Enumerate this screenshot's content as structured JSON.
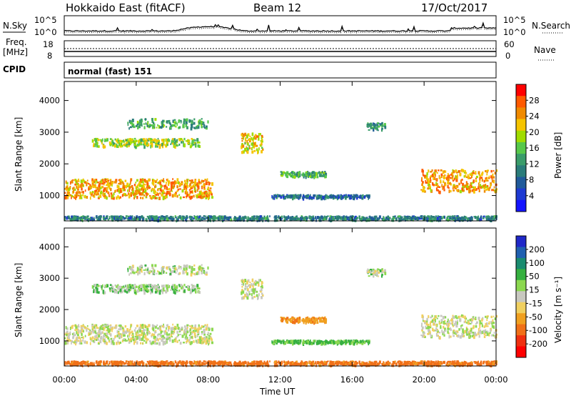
{
  "header": {
    "station": "Hokkaido East (fitACF)",
    "beam": "Beam 12",
    "date": "17/Oct/2017"
  },
  "noise_panel": {
    "left_label": "N.Sky",
    "right_label": "N.Search",
    "left_ticks": [
      "10^5",
      "10^0"
    ],
    "right_ticks": [
      "10^5",
      "10^0"
    ]
  },
  "freq_panel": {
    "left_label_1": "Freq.",
    "left_label_2": "[MHz]",
    "right_label": "Nave",
    "left_ticks": [
      "18",
      "8"
    ],
    "right_ticks": [
      "60",
      "0"
    ]
  },
  "cpid_panel": {
    "label": "CPID",
    "mode_text": "normal (fast) 151"
  },
  "power_panel": {
    "ylabel": "Slant Range [km]",
    "cbar_label": "Power [dB]",
    "cbar_ticks": [
      "28",
      "24",
      "20",
      "16",
      "12",
      "8",
      "4"
    ],
    "cbar_colors": [
      "#ff0000",
      "#ff5a00",
      "#f08a00",
      "#f5c400",
      "#a0dc00",
      "#57c84a",
      "#3a9c6a",
      "#2a7c7a",
      "#205a9a",
      "#1e3ad2",
      "#1414ff"
    ]
  },
  "velocity_panel": {
    "ylabel": "Slant Range [km]",
    "cbar_label": "Velocity [m s⁻¹]",
    "cbar_ticks": [
      "200",
      "100",
      "50",
      "15",
      "-15",
      "-50",
      "-100",
      "-200"
    ],
    "cbar_colors": [
      "#2028c8",
      "#2060b0",
      "#1a8c70",
      "#36b040",
      "#8cd850",
      "#c8c8c0",
      "#f0d060",
      "#f0a020",
      "#f07018",
      "#f03010",
      "#ff0000"
    ]
  },
  "xaxis": {
    "label": "Time UT",
    "ticks": [
      "00:00",
      "04:00",
      "08:00",
      "12:00",
      "16:00",
      "20:00",
      "00:00"
    ]
  },
  "chart_data": {
    "type": "heatmap",
    "xlabel": "Time UT",
    "ylabel": "Slant Range [km]",
    "xlim": [
      0,
      24
    ],
    "ylim": [
      200,
      4600
    ],
    "y_ticks": [
      1000,
      2000,
      3000,
      4000
    ],
    "grid": false,
    "scatter_regions": [
      {
        "name": "band-near",
        "t0": 0.0,
        "t1": 8.2,
        "r_center": 1250,
        "r_spread": 300,
        "density": 0.9,
        "power": 28,
        "vel": 0
      },
      {
        "name": "upper-arc-1",
        "t0": 1.5,
        "t1": 7.5,
        "r_center": 2700,
        "r_spread": 120,
        "density": 0.55,
        "power": 22,
        "vel": 10
      },
      {
        "name": "upper-arc-2",
        "t0": 3.5,
        "t1": 8.0,
        "r_center": 3300,
        "r_spread": 150,
        "density": 0.4,
        "power": 18,
        "vel": 5
      },
      {
        "name": "mid-patch-10",
        "t0": 9.8,
        "t1": 11.0,
        "r_center": 2700,
        "r_spread": 300,
        "density": 0.8,
        "power": 26,
        "vel": 0
      },
      {
        "name": "patch-12-14",
        "t0": 12.0,
        "t1": 14.5,
        "r_center": 1700,
        "r_spread": 80,
        "density": 0.6,
        "power": 18,
        "vel": -40
      },
      {
        "name": "low-ridge",
        "t0": 11.5,
        "t1": 17.0,
        "r_center": 1000,
        "r_spread": 50,
        "density": 0.5,
        "power": 12,
        "vel": 20
      },
      {
        "name": "patch-17",
        "t0": 16.8,
        "t1": 17.8,
        "r_center": 3200,
        "r_spread": 120,
        "density": 0.6,
        "power": 16,
        "vel": 5
      },
      {
        "name": "band-evening",
        "t0": 19.8,
        "t1": 24.0,
        "r_center": 1500,
        "r_spread": 350,
        "density": 0.8,
        "power": 28,
        "vel": 0
      },
      {
        "name": "near-range",
        "t0": 0.0,
        "t1": 24.0,
        "r_center": 320,
        "r_spread": 60,
        "density": 0.5,
        "power": 14,
        "vel": -60
      }
    ]
  }
}
